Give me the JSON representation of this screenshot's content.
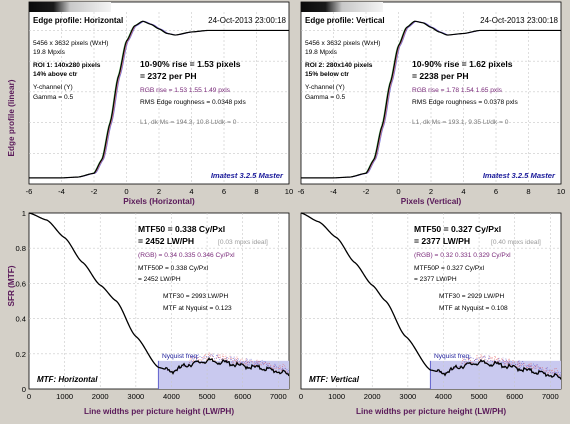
{
  "colors": {
    "background": "#d4d0c8",
    "plot_bg": "#ffffff",
    "grid": "#c8c8c8",
    "curve": "#000000",
    "red": "#e05050",
    "green": "#30a030",
    "blue": "#5050d0",
    "nyquist_fill": "#c9c9ef",
    "nyquist_line": "#5555c8",
    "label": "#5a1a5a",
    "magenta": "#7a2a7a"
  },
  "top_left": {
    "header": "Edge profile: Horizontal",
    "date": "24-Oct-2013 23:00:18",
    "size": "5456 x 3632 pixels (WxH)",
    "mpxls": "19.8 Mpxls",
    "roi": "ROI 1: 140x280 pixels",
    "pos": "14% above ctr",
    "channel": "Y-channel (Y)",
    "gamma": "Gamma = 0.5",
    "rise1": "10-90% rise = 1.53 pixels",
    "rise2": "= 2372 per PH",
    "rgb": "RGB rise = 1.53  1.55  1.49 pxls",
    "rms": "RMS Edge roughness = 0.0348 pxls",
    "l1": "L1, dk Ms = 194.3, 10.8    Lt/dk = 0",
    "brand": "Imatest 3.2.5 Master",
    "xlabel": "Pixels (Horizontal)"
  },
  "top_right": {
    "header": "Edge profile: Vertical",
    "date": "24-Oct-2013 23:00:18",
    "size": "5456 x 3632 pixels (WxH)",
    "mpxls": "19.8 Mpxls",
    "roi": "ROI 2: 280x140 pixels",
    "pos": "15% below ctr",
    "channel": "Y-channel (Y)",
    "gamma": "Gamma = 0.5",
    "rise1": "10-90% rise = 1.62 pixels",
    "rise2": "= 2238 per PH",
    "rgb": "RGB rise = 1.78  1.54  1.65 pxls",
    "rms": "RMS Edge roughness = 0.0378 pxls",
    "l1": "L1, dk Ms = 193.1, 9.35    Lt/dk = 0",
    "brand": "Imatest 3.2.5 Master",
    "xlabel": "Pixels (Vertical)"
  },
  "bottom_left": {
    "mtf50a": "MTF50 = 0.338 Cy/Pxl",
    "mtf50b": "= 2452 LW/PH",
    "ideal": "[0.03 mpxs ideal]",
    "rgb": "(RGB) = 0.34  0.335  0.346 Cy/Pxl",
    "mtf50pa": "MTF50P = 0.338 Cy/Pxl",
    "mtf50pb": "= 2452 LW/PH",
    "mtf30": "MTF30 = 2993 LW/PH",
    "nyq": "MTF at Nyquist = 0.123",
    "nyq_label": "Nyquist freq.",
    "title": "MTF: Horizontal",
    "xlabel": "Line widths per picture height (LW/PH)"
  },
  "bottom_right": {
    "mtf50a": "MTF50 = 0.327 Cy/Pxl",
    "mtf50b": "= 2377 LW/PH",
    "ideal": "[0.40 mpxs ideal]",
    "rgb": "(RGB) = 0.32  0.331  0.329 Cy/Pxl",
    "mtf50pa": "MTF50P = 0.327 Cy/Pxl",
    "mtf50pb": "= 2377 LW/PH",
    "mtf30": "MTF30 = 2929 LW/PH",
    "nyq": "MTF at Nyquist = 0.108",
    "nyq_label": "Nyquist freq.",
    "title": "MTF: Vertical",
    "xlabel": "Line widths per picture height (LW/PH)"
  },
  "ylabel_top": "Edge profile (linear)",
  "ylabel_bottom": "SFR (MTF)",
  "chart_data": [
    {
      "type": "line",
      "panel": "Edge profile: Horizontal",
      "xlabel": "Pixels (Horizontal)",
      "ylabel": "Edge profile (linear)",
      "x": [
        -6,
        -4,
        -3,
        -2,
        -1.5,
        -1,
        -0.5,
        0,
        0.5,
        1,
        1.5,
        2,
        2.5,
        3,
        4,
        5,
        6,
        8,
        10
      ],
      "y": [
        0.04,
        0.04,
        0.045,
        0.07,
        0.16,
        0.4,
        0.7,
        0.93,
        1.03,
        1.06,
        1.04,
        1.01,
        0.98,
        0.97,
        0.99,
        1.0,
        1.0,
        1.0,
        1.0
      ],
      "xlim": [
        -6,
        10
      ],
      "xticks": [
        "-6",
        "-4",
        "-2",
        "0",
        "2",
        "4",
        "6",
        "8",
        "10"
      ]
    },
    {
      "type": "line",
      "panel": "Edge profile: Vertical",
      "xlabel": "Pixels (Vertical)",
      "x": [
        -6,
        -4,
        -3,
        -2,
        -1.5,
        -1,
        -0.5,
        0,
        0.5,
        1,
        1.5,
        2,
        2.5,
        3,
        4,
        5,
        6,
        8,
        10
      ],
      "y": [
        0.04,
        0.04,
        0.045,
        0.07,
        0.16,
        0.38,
        0.66,
        0.9,
        1.02,
        1.06,
        1.05,
        1.02,
        0.99,
        0.97,
        0.98,
        1.0,
        1.0,
        1.0,
        1.0
      ],
      "xlim": [
        -6,
        10
      ],
      "xticks": [
        "-6",
        "-4",
        "-2",
        "0",
        "2",
        "4",
        "6",
        "8",
        "10"
      ]
    },
    {
      "type": "line",
      "panel": "MTF: Horizontal",
      "xlabel": "Line widths per picture height (LW/PH)",
      "ylabel": "SFR (MTF)",
      "x": [
        0,
        500,
        1000,
        1500,
        2000,
        2452,
        2993,
        3632,
        4000,
        4500,
        5000,
        5500,
        6000,
        6500,
        7000,
        7300
      ],
      "y": [
        1.0,
        0.96,
        0.86,
        0.72,
        0.59,
        0.5,
        0.3,
        0.123,
        0.1,
        0.14,
        0.16,
        0.15,
        0.13,
        0.12,
        0.1,
        0.08
      ],
      "xlim": [
        0,
        7300
      ],
      "ylim": [
        0,
        1
      ],
      "nyquist": 3632,
      "xticks": [
        "0",
        "1000",
        "2000",
        "3000",
        "4000",
        "5000",
        "6000",
        "7000"
      ],
      "yticks": [
        "0",
        "0.2",
        "0.4",
        "0.6",
        "0.8",
        "1"
      ]
    },
    {
      "type": "line",
      "panel": "MTF: Vertical",
      "xlabel": "Line widths per picture height (LW/PH)",
      "x": [
        0,
        500,
        1000,
        1500,
        2000,
        2377,
        2929,
        3632,
        4000,
        4500,
        5000,
        5500,
        6000,
        6500,
        7000,
        7300
      ],
      "y": [
        1.0,
        0.95,
        0.86,
        0.72,
        0.59,
        0.5,
        0.3,
        0.108,
        0.09,
        0.13,
        0.15,
        0.14,
        0.12,
        0.1,
        0.08,
        0.06
      ],
      "xlim": [
        0,
        7300
      ],
      "ylim": [
        0,
        1
      ],
      "nyquist": 3632,
      "xticks": [
        "0",
        "1000",
        "2000",
        "3000",
        "4000",
        "5000",
        "6000",
        "7000"
      ],
      "yticks": [
        "0",
        "0.2",
        "0.4",
        "0.6",
        "0.8",
        "1"
      ]
    }
  ]
}
